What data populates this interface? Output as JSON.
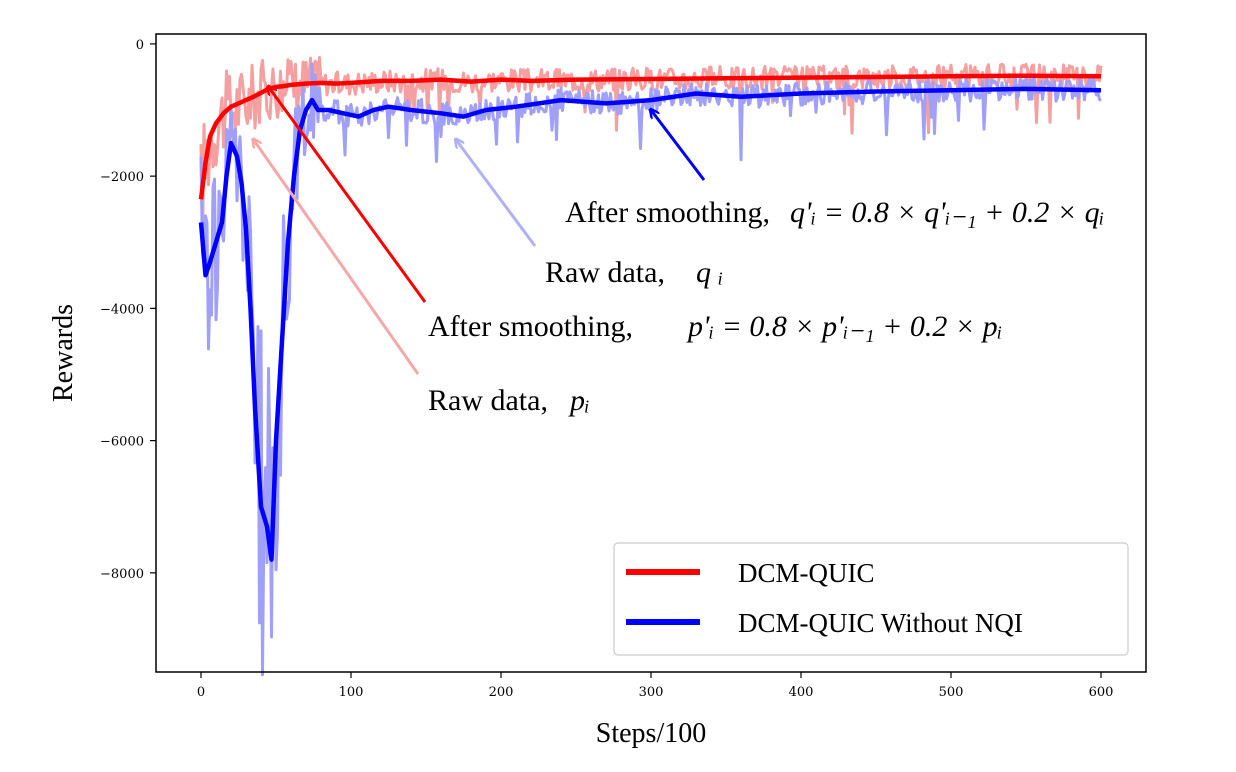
{
  "chart_data": {
    "type": "line",
    "xlabel": "Steps/100",
    "ylabel": "Rewards",
    "xlim": [
      -30,
      630
    ],
    "ylim": [
      -9500,
      150
    ],
    "xticks": [
      0,
      100,
      200,
      300,
      400,
      500,
      600
    ],
    "yticks": [
      0,
      -2000,
      -4000,
      -6000,
      -8000
    ],
    "ytick_labels": [
      "0",
      "−2000",
      "−4000",
      "−6000",
      "−8000"
    ],
    "grid": false,
    "legend_position": "bottom-right",
    "series": [
      {
        "name": "DCM-QUIC",
        "color": "#ff0000",
        "smoothed": [
          [
            0,
            -2350
          ],
          [
            3,
            -1800
          ],
          [
            6,
            -1400
          ],
          [
            10,
            -1200
          ],
          [
            15,
            -1050
          ],
          [
            20,
            -950
          ],
          [
            25,
            -900
          ],
          [
            30,
            -850
          ],
          [
            35,
            -800
          ],
          [
            40,
            -740
          ],
          [
            45,
            -680
          ],
          [
            50,
            -650
          ],
          [
            55,
            -640
          ],
          [
            60,
            -620
          ],
          [
            70,
            -600
          ],
          [
            80,
            -590
          ],
          [
            90,
            -600
          ],
          [
            100,
            -590
          ],
          [
            120,
            -560
          ],
          [
            140,
            -560
          ],
          [
            160,
            -540
          ],
          [
            180,
            -570
          ],
          [
            200,
            -540
          ],
          [
            220,
            -560
          ],
          [
            250,
            -540
          ],
          [
            300,
            -530
          ],
          [
            350,
            -520
          ],
          [
            400,
            -510
          ],
          [
            450,
            -500
          ],
          [
            500,
            -490
          ],
          [
            550,
            -480
          ],
          [
            600,
            -490
          ]
        ],
        "raw_color": "#f4a0a0"
      },
      {
        "name": "DCM-QUIC Without NQI",
        "color": "#0000ff",
        "smoothed": [
          [
            0,
            -2700
          ],
          [
            3,
            -3500
          ],
          [
            6,
            -3300
          ],
          [
            10,
            -3000
          ],
          [
            14,
            -2700
          ],
          [
            17,
            -2000
          ],
          [
            20,
            -1500
          ],
          [
            24,
            -1700
          ],
          [
            27,
            -2100
          ],
          [
            30,
            -2800
          ],
          [
            33,
            -4000
          ],
          [
            36,
            -5500
          ],
          [
            40,
            -7000
          ],
          [
            44,
            -7300
          ],
          [
            47,
            -7800
          ],
          [
            50,
            -6000
          ],
          [
            54,
            -4500
          ],
          [
            58,
            -3000
          ],
          [
            62,
            -2000
          ],
          [
            66,
            -1300
          ],
          [
            70,
            -1000
          ],
          [
            74,
            -850
          ],
          [
            78,
            -1000
          ],
          [
            85,
            -1000
          ],
          [
            95,
            -1050
          ],
          [
            105,
            -1100
          ],
          [
            115,
            -1000
          ],
          [
            125,
            -950
          ],
          [
            140,
            -1000
          ],
          [
            160,
            -1050
          ],
          [
            175,
            -1100
          ],
          [
            190,
            -1000
          ],
          [
            210,
            -950
          ],
          [
            240,
            -850
          ],
          [
            270,
            -900
          ],
          [
            300,
            -850
          ],
          [
            330,
            -750
          ],
          [
            360,
            -800
          ],
          [
            400,
            -750
          ],
          [
            450,
            -720
          ],
          [
            500,
            -700
          ],
          [
            550,
            -680
          ],
          [
            600,
            -700
          ]
        ],
        "raw_color": "#a0a0f8"
      }
    ],
    "annotations": [
      {
        "prefix": "After smoothing,",
        "formula": "q'ᵢ = 0.8 × q'ᵢ₋₁ + 0.2 × qᵢ",
        "target": [
          300,
          -1000
        ],
        "color": "#0000ff"
      },
      {
        "prefix": "Raw data,",
        "formula": "q ᵢ",
        "target": [
          170,
          -1450
        ],
        "color": "#b0b0f8"
      },
      {
        "prefix": "After smoothing,",
        "formula": "p'ᵢ = 0.8 × p'ᵢ₋₁ + 0.2 × pᵢ",
        "target": [
          45,
          -650
        ],
        "color": "#ff0000"
      },
      {
        "prefix": "Raw data,",
        "formula": "pᵢ",
        "target": [
          35,
          -1450
        ],
        "color": "#f4a8a8"
      }
    ]
  }
}
